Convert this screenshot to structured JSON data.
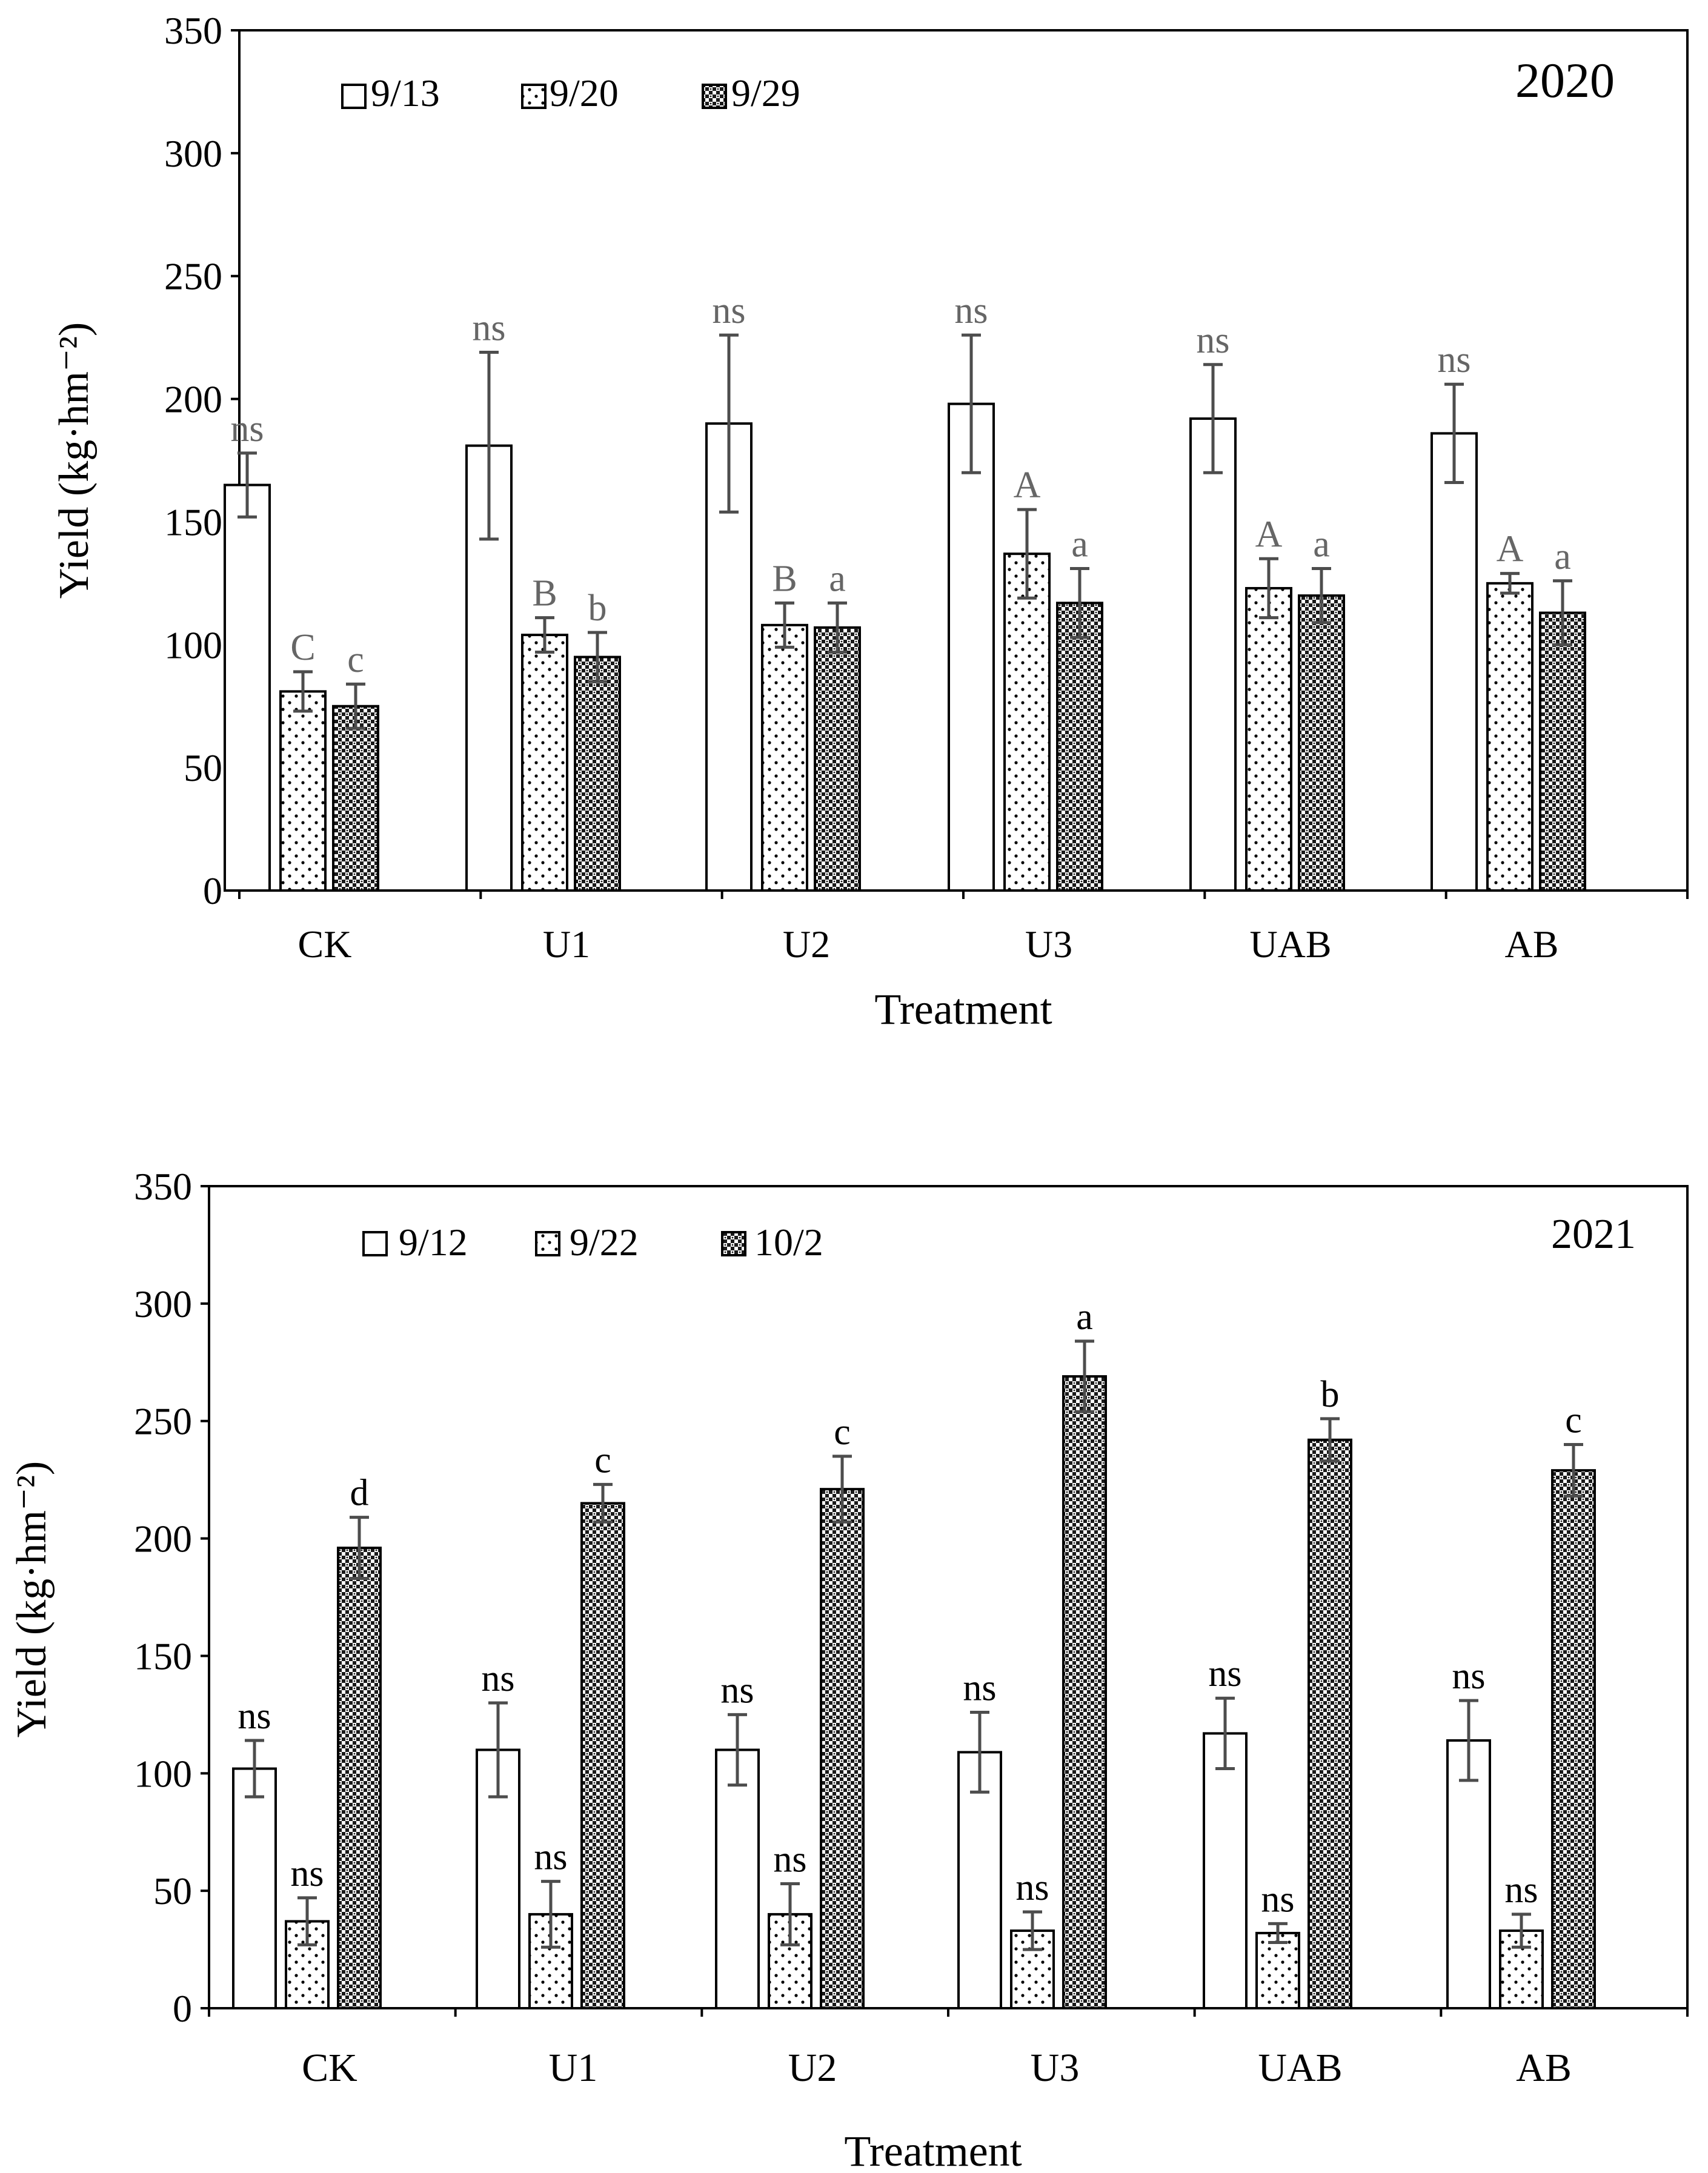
{
  "colors": {
    "axis": "#000000",
    "error_bar": "#4d4d4d",
    "letter_2020": "#666666",
    "letter_2021": "#000000",
    "bar_fill": "#ffffff"
  },
  "chart_data": [
    {
      "type": "bar",
      "title": "2020",
      "xlabel": "Treatment",
      "ylabel": "Yield (kg·hm⁻²)",
      "ylim": [
        0,
        350
      ],
      "yticks": [
        "0",
        "50",
        "100",
        "150",
        "200",
        "250",
        "300",
        "350"
      ],
      "categories": [
        "CK",
        "U1",
        "U2",
        "U3",
        "UAB",
        "AB"
      ],
      "legend_position": "top-left",
      "series": [
        {
          "name": "9/13",
          "pattern": "open",
          "values": [
            165,
            181,
            190,
            198,
            192,
            186
          ],
          "errors": [
            13,
            38,
            36,
            28,
            22,
            20
          ],
          "letters": [
            "ns",
            "ns",
            "ns",
            "ns",
            "ns",
            "ns"
          ]
        },
        {
          "name": "9/20",
          "pattern": "dots",
          "values": [
            81,
            104,
            108,
            137,
            123,
            125
          ],
          "errors": [
            8,
            7,
            9,
            18,
            12,
            4
          ],
          "letters": [
            "C",
            "B",
            "B",
            "A",
            "A",
            "A"
          ]
        },
        {
          "name": "9/29",
          "pattern": "checker",
          "values": [
            75,
            95,
            107,
            117,
            120,
            113
          ],
          "errors": [
            9,
            10,
            10,
            14,
            11,
            13
          ],
          "letters": [
            "c",
            "b",
            "a",
            "a",
            "a",
            "a"
          ]
        }
      ]
    },
    {
      "type": "bar",
      "title": "2021",
      "xlabel": "Treatment",
      "ylabel": "Yield (kg·hm⁻²)",
      "ylim": [
        0,
        350
      ],
      "yticks": [
        "0",
        "50",
        "100",
        "150",
        "200",
        "250",
        "300",
        "350"
      ],
      "categories": [
        "CK",
        "U1",
        "U2",
        "U3",
        "UAB",
        "AB"
      ],
      "legend_position": "top-left",
      "series": [
        {
          "name": "9/12",
          "pattern": "open",
          "values": [
            102,
            110,
            110,
            109,
            117,
            114
          ],
          "errors": [
            12,
            20,
            15,
            17,
            15,
            17
          ],
          "letters": [
            "ns",
            "ns",
            "ns",
            "ns",
            "ns",
            "ns"
          ]
        },
        {
          "name": "9/22",
          "pattern": "dots",
          "values": [
            37,
            40,
            40,
            33,
            32,
            33
          ],
          "errors": [
            10,
            14,
            13,
            8,
            4,
            7
          ],
          "letters": [
            "ns",
            "ns",
            "ns",
            "ns",
            "ns",
            "ns"
          ]
        },
        {
          "name": "10/2",
          "pattern": "checker",
          "values": [
            196,
            215,
            221,
            269,
            242,
            229
          ],
          "errors": [
            13,
            8,
            14,
            15,
            9,
            11
          ],
          "letters": [
            "d",
            "c",
            "c",
            "a",
            "b",
            "c"
          ]
        }
      ]
    }
  ]
}
